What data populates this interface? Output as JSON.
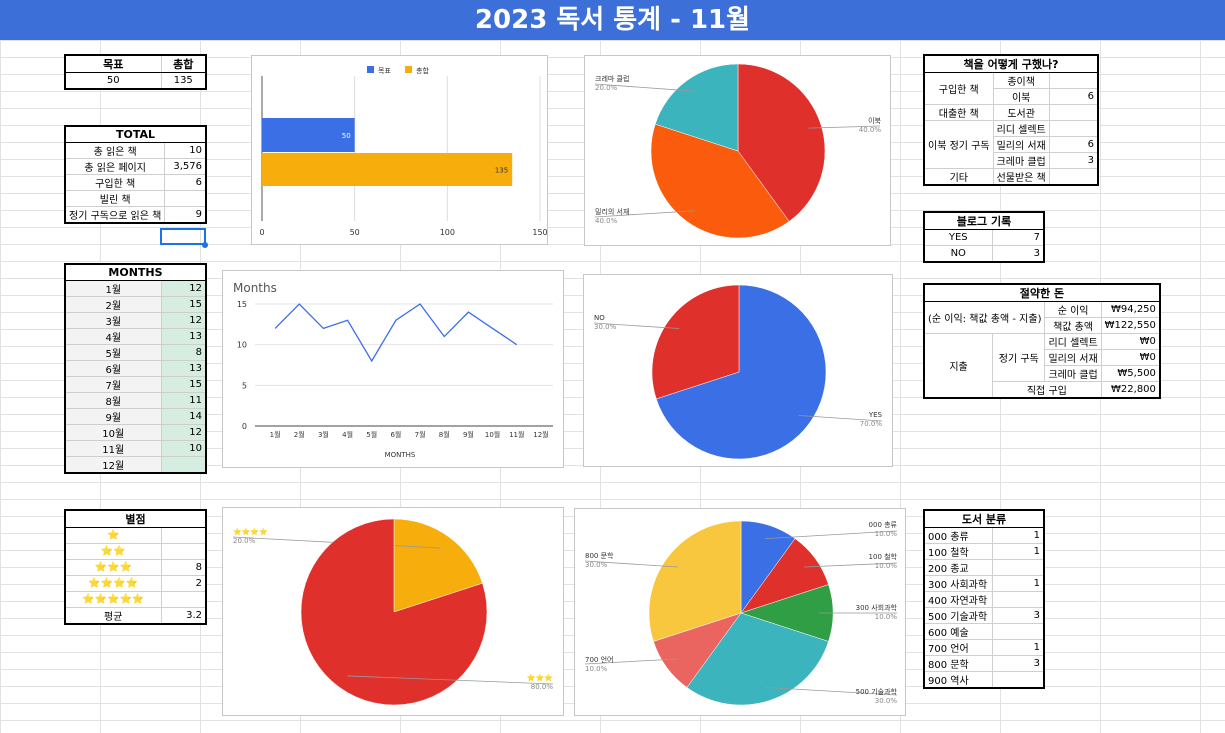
{
  "title": "2023 독서 통계 - 11월",
  "goal": {
    "h1": "목표",
    "h2": "총합",
    "v1": "50",
    "v2": "135"
  },
  "total": {
    "title": "TOTAL",
    "rows": [
      [
        "총 읽은 책",
        "10"
      ],
      [
        "총 읽은 페이지",
        "3,576"
      ],
      [
        "구입한 책",
        "6"
      ],
      [
        "빌린 책",
        ""
      ],
      [
        "정기 구독으로 읽은 책",
        "9"
      ]
    ]
  },
  "months": {
    "title": "MONTHS",
    "rows": [
      [
        "1월",
        "12"
      ],
      [
        "2월",
        "15"
      ],
      [
        "3월",
        "12"
      ],
      [
        "4월",
        "13"
      ],
      [
        "5월",
        "8"
      ],
      [
        "6월",
        "13"
      ],
      [
        "7월",
        "15"
      ],
      [
        "8월",
        "11"
      ],
      [
        "9월",
        "14"
      ],
      [
        "10월",
        "12"
      ],
      [
        "11월",
        "10"
      ],
      [
        "12월",
        ""
      ]
    ]
  },
  "rating": {
    "title": "별점",
    "rows": [
      [
        "⭐",
        ""
      ],
      [
        "⭐⭐",
        ""
      ],
      [
        "⭐⭐⭐",
        "8"
      ],
      [
        "⭐⭐⭐⭐",
        "2"
      ],
      [
        "⭐⭐⭐⭐⭐",
        ""
      ]
    ],
    "avg_label": "평균",
    "avg": "3.2"
  },
  "acquire": {
    "title": "책을 어떻게 구했나?",
    "buy": "구입한 책",
    "paper": "종이책",
    "ebook": "이북",
    "ebook_v": "6",
    "borrow": "대출한 책",
    "library": "도서관",
    "sub": "이북 정기 구독",
    "ridi": "리디 셀렉트",
    "millie": "밀리의 서재",
    "millie_v": "6",
    "crema": "크레마 클럽",
    "crema_v": "3",
    "etc": "기타",
    "gift": "선물받은 책"
  },
  "blog": {
    "title": "블로그 기록",
    "rows": [
      [
        "YES",
        "7"
      ],
      [
        "NO",
        "3"
      ]
    ]
  },
  "money": {
    "title": "절약한 돈",
    "note": "(순 이익: 책값 총액 - 지출)",
    "net_l": "순 이익",
    "net_v": "₩94,250",
    "tot_l": "책값 총액",
    "tot_v": "₩122,550",
    "spend": "지출",
    "sub": "정기 구독",
    "ridi": "리디 셀렉트",
    "ridi_v": "₩0",
    "millie": "밀리의 서재",
    "millie_v": "₩0",
    "crema": "크레마 클럽",
    "crema_v": "₩5,500",
    "direct": "직접 구입",
    "direct_v": "₩22,800"
  },
  "genre": {
    "title": "도서 분류",
    "rows": [
      [
        "000 총류",
        "1"
      ],
      [
        "100 철학",
        "1"
      ],
      [
        "200 종교",
        ""
      ],
      [
        "300 사회과학",
        "1"
      ],
      [
        "400 자연과학",
        ""
      ],
      [
        "500 기술과학",
        "3"
      ],
      [
        "600 예술",
        ""
      ],
      [
        "700 언어",
        "1"
      ],
      [
        "800 문학",
        "3"
      ],
      [
        "900 역사",
        ""
      ]
    ]
  },
  "chart_data": [
    {
      "type": "bar",
      "orientation": "horizontal",
      "series": [
        {
          "name": "목표",
          "values": [
            50
          ],
          "color": "#3b6fe6"
        },
        {
          "name": "총합",
          "values": [
            135
          ],
          "color": "#f7ad0b"
        }
      ],
      "data_labels": [
        "50",
        "135"
      ],
      "xlim": [
        0,
        150
      ],
      "xticks": [
        "0",
        "50",
        "100",
        "150"
      ],
      "legend": "top"
    },
    {
      "type": "pie",
      "slices": [
        {
          "label": "이북",
          "value": 40.0,
          "pct": "40.0%",
          "color": "#e0302c"
        },
        {
          "label": "밀리의 서재",
          "value": 40.0,
          "pct": "40.0%",
          "color": "#fb5b0c"
        },
        {
          "label": "크레마 클럽",
          "value": 20.0,
          "pct": "20.0%",
          "color": "#3cb4bd"
        }
      ]
    },
    {
      "type": "line",
      "title": "Months",
      "xlabel": "MONTHS",
      "categories": [
        "1월",
        "2월",
        "3월",
        "4월",
        "5월",
        "6월",
        "7월",
        "8월",
        "9월",
        "10월",
        "11월",
        "12월"
      ],
      "values": [
        12,
        15,
        12,
        13,
        8,
        13,
        15,
        11,
        14,
        12,
        10,
        null
      ],
      "ylim": [
        0,
        15
      ],
      "yticks": [
        "0",
        "5",
        "10",
        "15"
      ],
      "color": "#3b6fe6"
    },
    {
      "type": "pie",
      "slices": [
        {
          "label": "YES",
          "value": 70.0,
          "pct": "70.0%",
          "color": "#3b6fe6"
        },
        {
          "label": "NO",
          "value": 30.0,
          "pct": "30.0%",
          "color": "#e0302c"
        }
      ]
    },
    {
      "type": "pie",
      "slices": [
        {
          "label": "⭐⭐⭐⭐",
          "value": 20.0,
          "pct": "20.0%",
          "color": "#f7ad0b"
        },
        {
          "label": "⭐⭐⭐",
          "value": 80.0,
          "pct": "80.0%",
          "color": "#e0302c"
        }
      ]
    },
    {
      "type": "pie",
      "slices": [
        {
          "label": "000 총류",
          "value": 10.0,
          "pct": "10.0%",
          "color": "#3b6fe6"
        },
        {
          "label": "100 철학",
          "value": 10.0,
          "pct": "10.0%",
          "color": "#e0302c"
        },
        {
          "label": "300 사회과학",
          "value": 10.0,
          "pct": "10.0%",
          "color": "#2f9e44"
        },
        {
          "label": "500 기술과학",
          "value": 30.0,
          "pct": "30.0%",
          "color": "#3cb4bd"
        },
        {
          "label": "700 언어",
          "value": 10.0,
          "pct": "10.0%",
          "color": "#ea6560"
        },
        {
          "label": "800 문학",
          "value": 30.0,
          "pct": "30.0%",
          "color": "#f8c73d"
        }
      ]
    }
  ]
}
